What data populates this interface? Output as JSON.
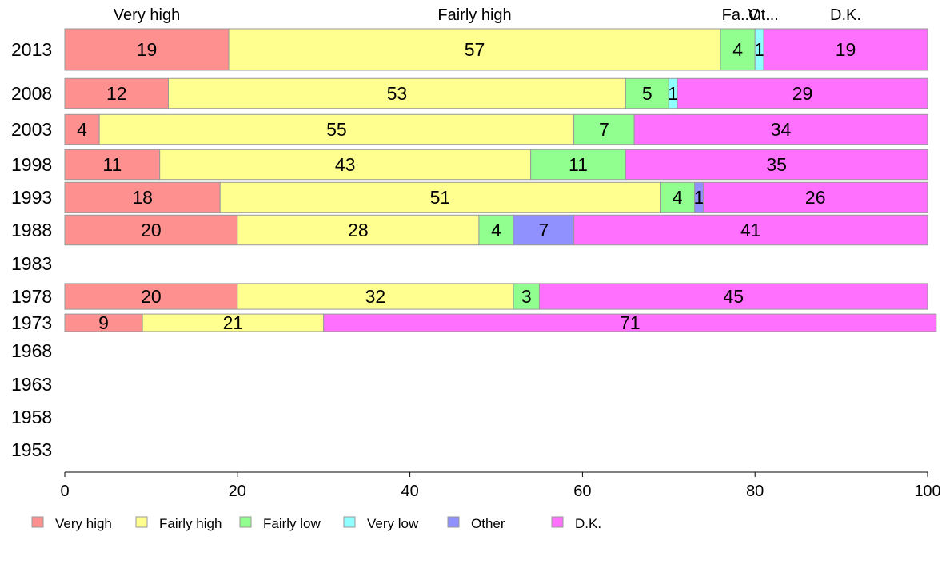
{
  "chart_data": {
    "type": "bar",
    "orientation": "horizontal",
    "stacked": true,
    "categories": [
      "2013",
      "2008",
      "2003",
      "1998",
      "1993",
      "1988",
      "1983",
      "1978",
      "1973",
      "1968",
      "1963",
      "1958",
      "1953"
    ],
    "series": [
      {
        "name": "Very high",
        "color": "#ff9090",
        "values": [
          19,
          12,
          4,
          11,
          18,
          20,
          null,
          20,
          9,
          null,
          null,
          null,
          null
        ]
      },
      {
        "name": "Fairly high",
        "color": "#ffff90",
        "values": [
          57,
          53,
          55,
          43,
          51,
          28,
          null,
          32,
          21,
          null,
          null,
          null,
          null
        ]
      },
      {
        "name": "Fairly low",
        "color": "#90ff90",
        "values": [
          4,
          5,
          7,
          11,
          4,
          4,
          null,
          3,
          0,
          null,
          null,
          null,
          null
        ]
      },
      {
        "name": "Very low",
        "color": "#90ffff",
        "values": [
          1,
          1,
          0,
          0,
          0,
          0,
          null,
          0,
          0,
          null,
          null,
          null,
          null
        ]
      },
      {
        "name": "Other",
        "color": "#9090ff",
        "values": [
          0,
          0,
          0,
          0,
          1,
          7,
          null,
          0,
          0,
          null,
          null,
          null,
          null
        ]
      },
      {
        "name": "D.K.",
        "color": "#ff70ff",
        "values": [
          19,
          29,
          34,
          35,
          26,
          41,
          null,
          45,
          71,
          null,
          null,
          null,
          null
        ]
      }
    ],
    "bar_widths": [
      1,
      0.72,
      0.72,
      0.72,
      0.72,
      0.72,
      0,
      0.62,
      0.42,
      0,
      0,
      0,
      0
    ],
    "top_labels": [
      "Very high",
      "Fairly high",
      "Fa...",
      "V...",
      "Ot...",
      "D.K."
    ],
    "xlim": [
      0,
      100
    ],
    "xticks": [
      0,
      20,
      40,
      60,
      80,
      100
    ],
    "grid": false,
    "legend_position": "bottom"
  }
}
